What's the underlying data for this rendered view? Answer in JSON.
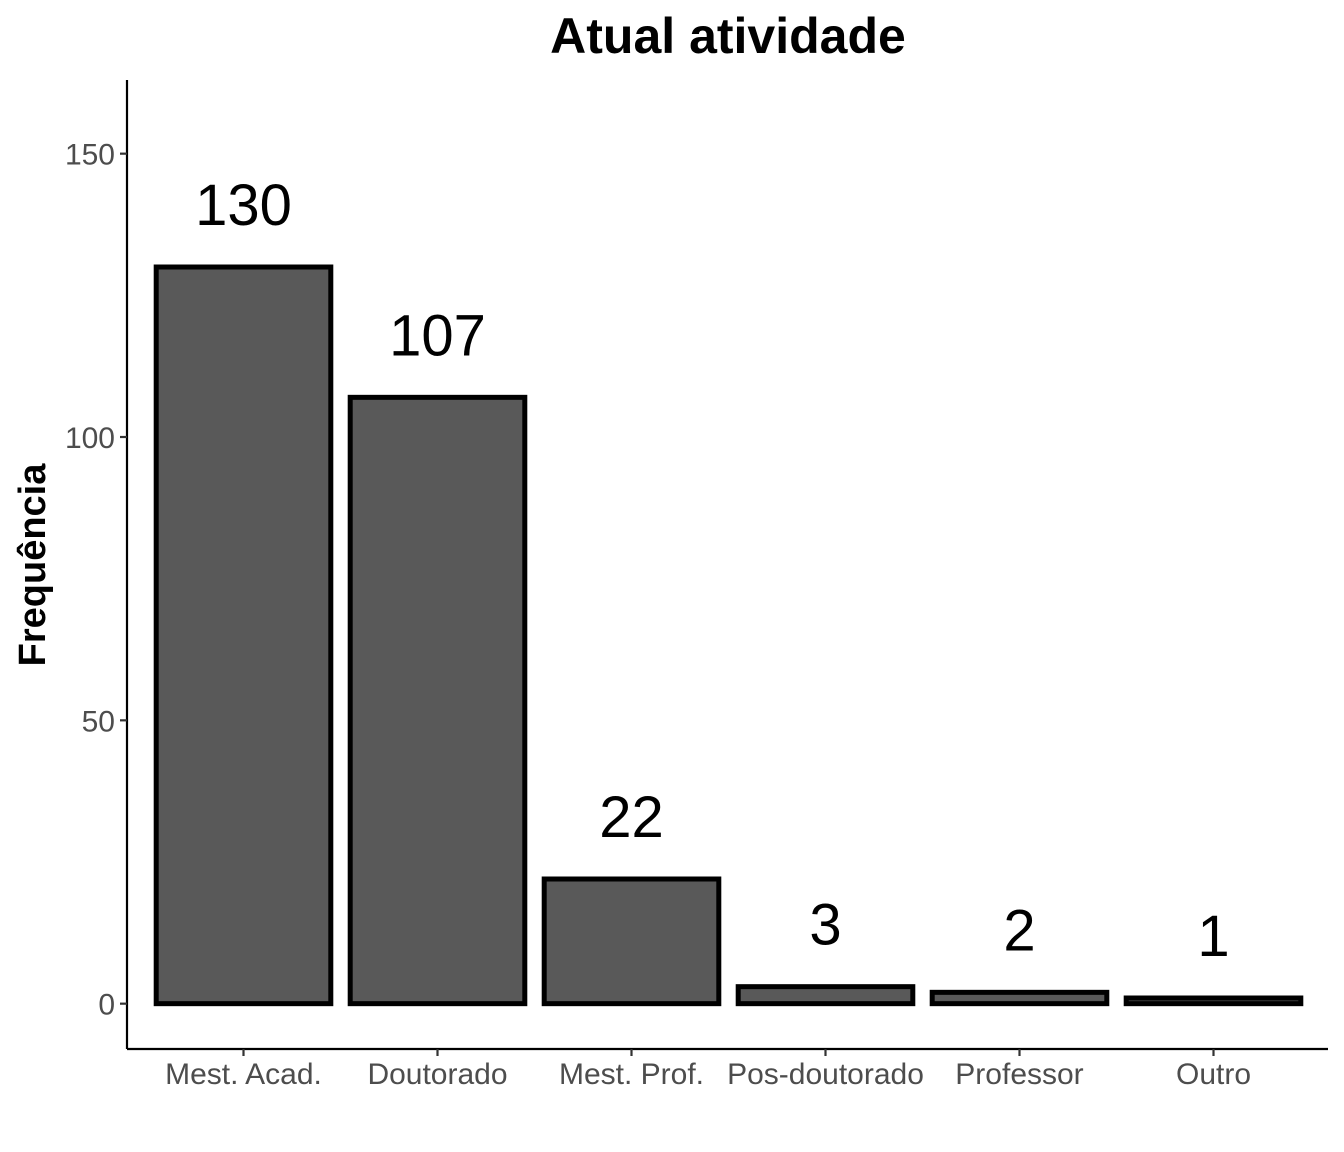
{
  "chart_data": {
    "type": "bar",
    "title": "Atual atividade",
    "xlabel": "",
    "ylabel": "Frequência",
    "categories": [
      "Mest. Acad.",
      "Doutorado",
      "Mest. Prof.",
      "Pos-doutorado",
      "Professor",
      "Outro"
    ],
    "values": [
      130,
      107,
      22,
      3,
      2,
      1
    ],
    "value_labels": [
      "130",
      "107",
      "22",
      "3",
      "2",
      "1"
    ],
    "ylim": [
      -8,
      163
    ],
    "yticks": [
      0,
      50,
      100,
      150
    ],
    "ytick_labels": [
      "0",
      "50",
      "100",
      "150"
    ],
    "grid": false,
    "legend": "none",
    "colors": {
      "bar_fill": "#595959",
      "bar_stroke": "#000000",
      "tick_label": "#4d4d4d",
      "axis": "#000000"
    }
  }
}
